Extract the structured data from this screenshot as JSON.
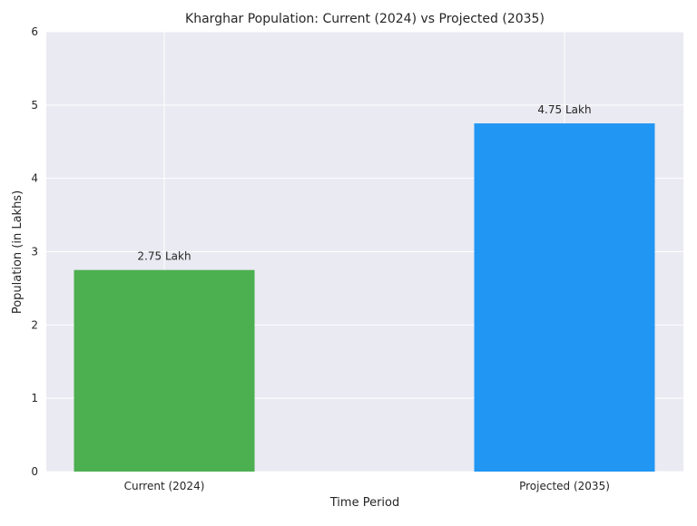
{
  "chart_data": {
    "type": "bar",
    "title": "Kharghar Population: Current (2024) vs Projected (2035)",
    "xlabel": "Time Period",
    "ylabel": "Population (in Lakhs)",
    "categories": [
      "Current (2024)",
      "Projected (2035)"
    ],
    "values": [
      2.75,
      4.75
    ],
    "data_labels": [
      "2.75 Lakh",
      "4.75 Lakh"
    ],
    "colors": [
      "#4caf50",
      "#2196f3"
    ],
    "ylim": [
      0,
      6
    ],
    "yticks": [
      0,
      1,
      2,
      3,
      4,
      5,
      6
    ],
    "grid": true,
    "legend": "none",
    "background": "#eaeaf2",
    "grid_color": "#ffffff"
  }
}
